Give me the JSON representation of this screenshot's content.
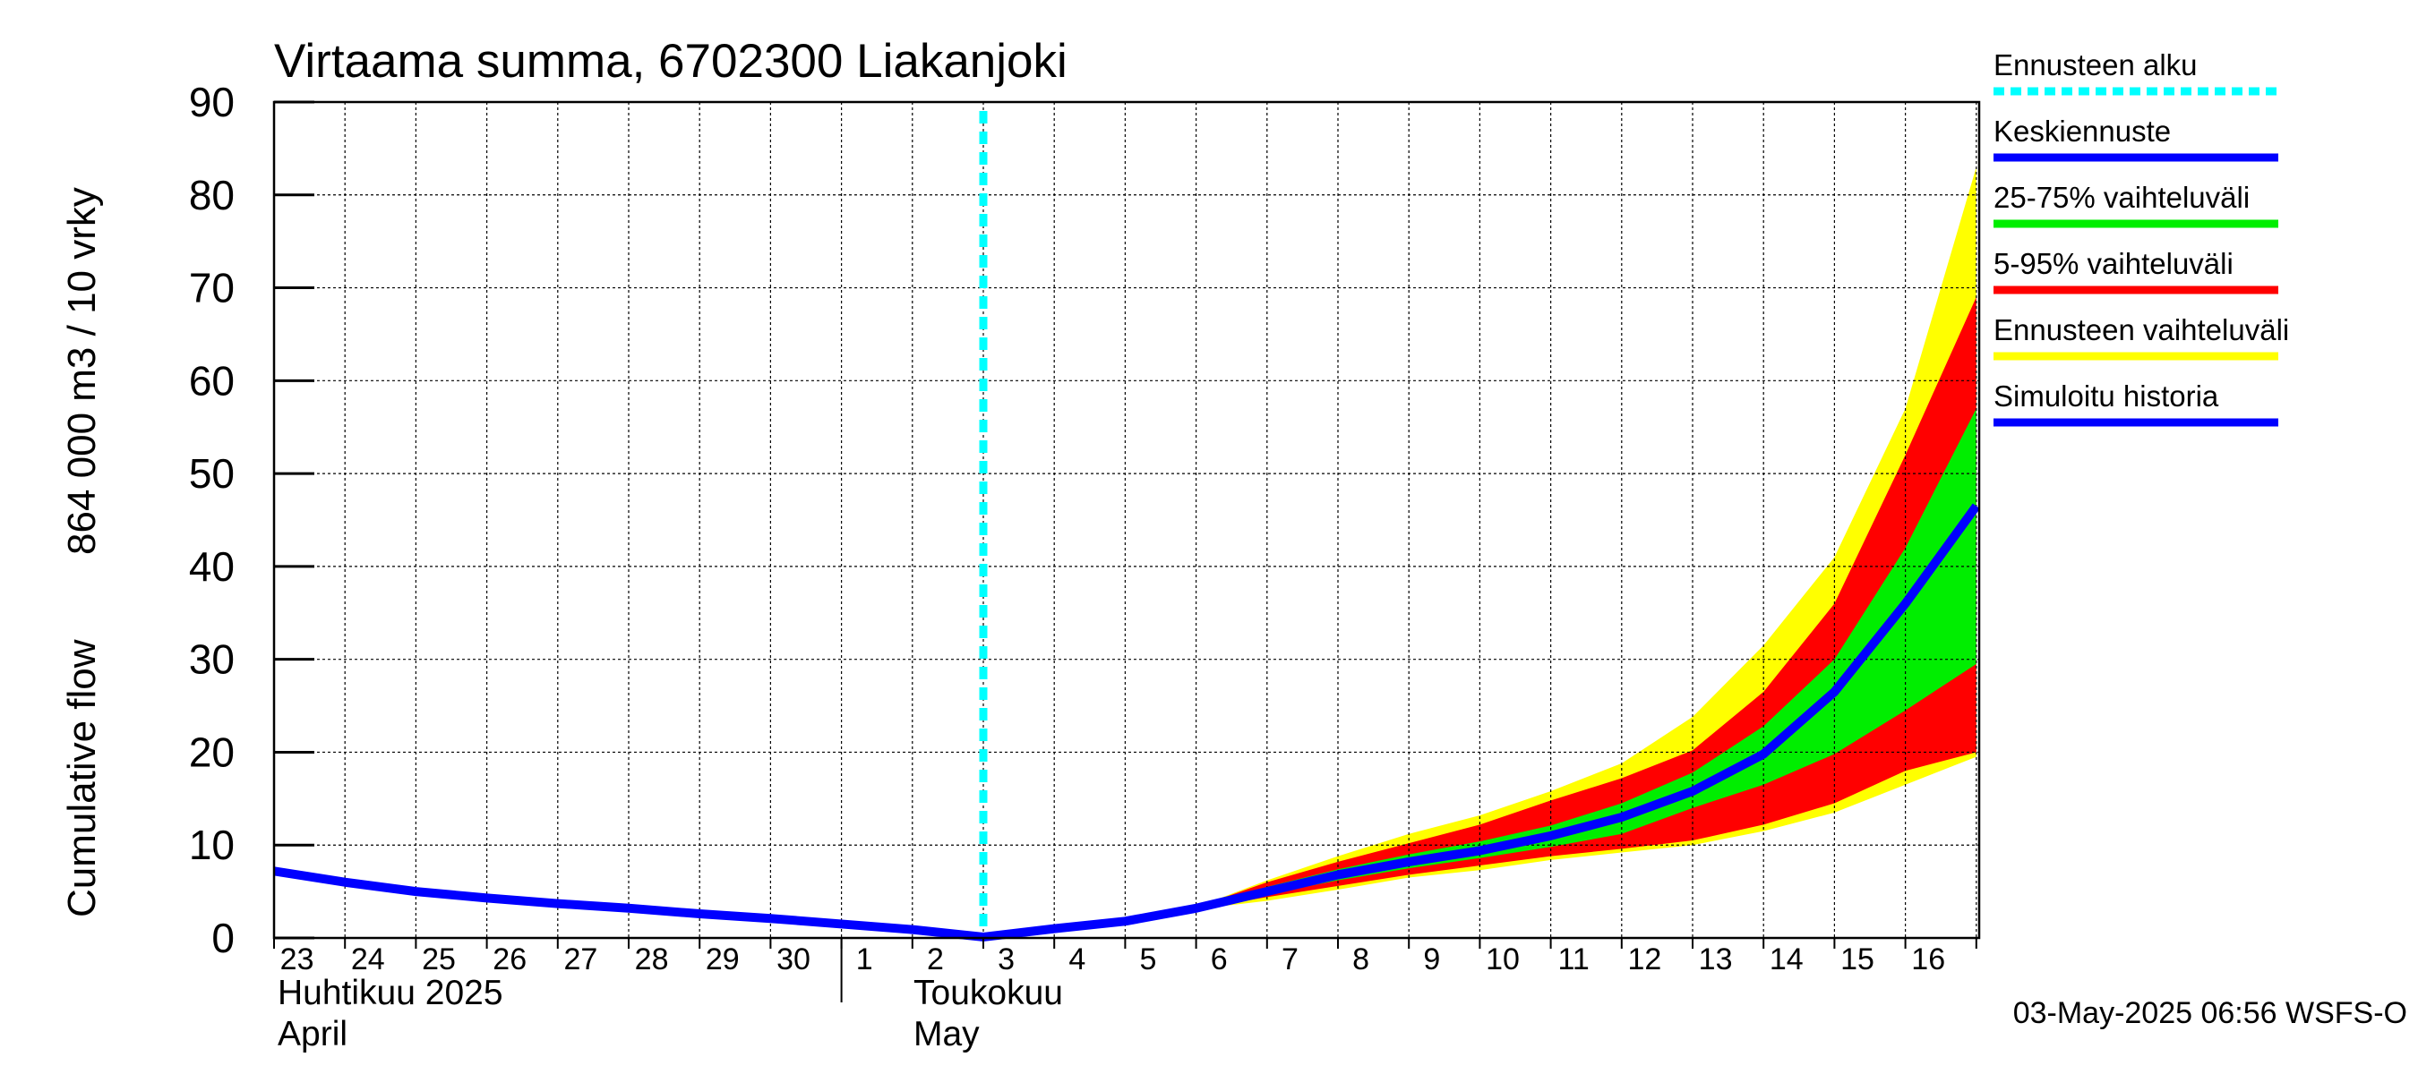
{
  "chart_data": {
    "type": "area",
    "title": "Virtaama summa, 6702300 Liakanjoki",
    "ylabel_fi": "864 000 m3 / 10 vrky",
    "ylabel_en": "Cumulative flow",
    "ylim": [
      0,
      90
    ],
    "yticks": [
      0,
      10,
      20,
      30,
      40,
      50,
      60,
      70,
      80,
      90
    ],
    "grid": true,
    "x_days": [
      "23",
      "24",
      "25",
      "26",
      "27",
      "28",
      "29",
      "30",
      "1",
      "2",
      "3",
      "4",
      "5",
      "6",
      "7",
      "8",
      "9",
      "10",
      "11",
      "12",
      "13",
      "14",
      "15",
      "16"
    ],
    "x_start_date": "2025-04-23",
    "month_labels": [
      {
        "fi": "Huhtikuu  2025",
        "en": "April"
      },
      {
        "fi": "Toukokuu",
        "en": "May"
      }
    ],
    "forecast_start": "2025-05-03",
    "series": [
      {
        "name": "Simuloitu historia",
        "color": "#0000ff",
        "points": [
          [
            "2025-04-23",
            7.2
          ],
          [
            "2025-04-24",
            6.0
          ],
          [
            "2025-04-25",
            5.0
          ],
          [
            "2025-04-26",
            4.3
          ],
          [
            "2025-04-27",
            3.7
          ],
          [
            "2025-04-28",
            3.2
          ],
          [
            "2025-04-29",
            2.6
          ],
          [
            "2025-04-30",
            2.1
          ],
          [
            "2025-05-01",
            1.5
          ],
          [
            "2025-05-02",
            0.9
          ],
          [
            "2025-05-03",
            0.1
          ]
        ]
      },
      {
        "name": "Keskiennuste",
        "color": "#0000ff",
        "points": [
          [
            "2025-05-03",
            0.1
          ],
          [
            "2025-05-04",
            1.0
          ],
          [
            "2025-05-05",
            1.8
          ],
          [
            "2025-05-06",
            3.2
          ],
          [
            "2025-05-07",
            5.0
          ],
          [
            "2025-05-08",
            6.8
          ],
          [
            "2025-05-09",
            8.2
          ],
          [
            "2025-05-10",
            9.4
          ],
          [
            "2025-05-11",
            11.0
          ],
          [
            "2025-05-12",
            13.0
          ],
          [
            "2025-05-13",
            15.8
          ],
          [
            "2025-05-14",
            19.8
          ],
          [
            "2025-05-15",
            26.5
          ],
          [
            "2025-05-16",
            36.0
          ],
          [
            "2025-05-17",
            46.5
          ]
        ]
      }
    ],
    "bands": [
      {
        "name": "Ennusteen vaihteluväli",
        "color": "#ffff00",
        "dates": [
          "2025-05-06",
          "2025-05-07",
          "2025-05-08",
          "2025-05-09",
          "2025-05-10",
          "2025-05-11",
          "2025-05-12",
          "2025-05-13",
          "2025-05-14",
          "2025-05-15",
          "2025-05-16",
          "2025-05-17"
        ],
        "low": [
          3.1,
          4.0,
          5.2,
          6.5,
          7.3,
          8.4,
          9.2,
          10.0,
          11.5,
          13.5,
          16.5,
          19.5
        ],
        "high": [
          3.3,
          6.2,
          8.8,
          11.2,
          13.2,
          15.8,
          18.8,
          23.8,
          31.5,
          41.0,
          57.0,
          83.0
        ]
      },
      {
        "name": "5-95% vaihteluväli",
        "color": "#ff0000",
        "dates": [
          "2025-05-06",
          "2025-05-07",
          "2025-05-08",
          "2025-05-09",
          "2025-05-10",
          "2025-05-11",
          "2025-05-12",
          "2025-05-13",
          "2025-05-14",
          "2025-05-15",
          "2025-05-16",
          "2025-05-17"
        ],
        "low": [
          3.1,
          4.4,
          5.6,
          6.8,
          7.8,
          8.8,
          9.6,
          10.5,
          12.2,
          14.5,
          18.0,
          20.0
        ],
        "high": [
          3.3,
          6.0,
          8.2,
          10.2,
          12.2,
          14.8,
          17.2,
          20.2,
          26.5,
          36.0,
          52.0,
          69.0
        ]
      },
      {
        "name": "25-75% vaihteluväli",
        "color": "#00ee00",
        "dates": [
          "2025-05-06",
          "2025-05-07",
          "2025-05-08",
          "2025-05-09",
          "2025-05-10",
          "2025-05-11",
          "2025-05-12",
          "2025-05-13",
          "2025-05-14",
          "2025-05-15",
          "2025-05-16",
          "2025-05-17"
        ],
        "low": [
          3.2,
          4.7,
          6.2,
          7.5,
          8.6,
          9.8,
          11.2,
          14.0,
          16.5,
          19.8,
          24.5,
          29.5
        ],
        "high": [
          3.3,
          5.5,
          7.4,
          9.0,
          10.4,
          12.1,
          14.5,
          17.8,
          22.8,
          30.0,
          42.0,
          57.0
        ]
      }
    ],
    "legend": [
      {
        "label": "Ennusteen alku",
        "color": "#00ffff",
        "style": "dotted"
      },
      {
        "label": "Keskiennuste",
        "color": "#0000ff",
        "style": "solid"
      },
      {
        "label": "25-75% vaihteluväli",
        "color": "#00ee00",
        "style": "solid"
      },
      {
        "label": "5-95% vaihteluväli",
        "color": "#ff0000",
        "style": "solid"
      },
      {
        "label": "Ennusteen vaihteluväli",
        "color": "#ffff00",
        "style": "solid"
      },
      {
        "label": "Simuloitu historia",
        "color": "#0000ff",
        "style": "solid"
      }
    ],
    "legend_position": "right"
  },
  "footer": "03-May-2025 06:56 WSFS-O"
}
